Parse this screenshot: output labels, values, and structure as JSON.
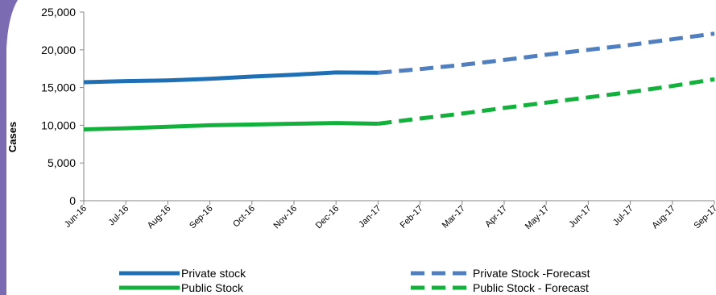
{
  "chart_data": {
    "type": "line",
    "ylabel": "Cases",
    "ylim": [
      0,
      25000
    ],
    "yticks": [
      "0",
      "5,000",
      "10,000",
      "15,000",
      "20,000",
      "25,000"
    ],
    "categories": [
      "Jun-16",
      "Jul-16",
      "Aug-16",
      "Sep-16",
      "Oct-16",
      "Nov-16",
      "Dec-16",
      "Jan-17",
      "Feb-17",
      "Mar-17",
      "Apr-17",
      "May-17",
      "Jun-17",
      "Jul-17",
      "Aug-17",
      "Sep-17"
    ],
    "series": [
      {
        "name": "Private stock",
        "style": "solid",
        "color": "#1F6FB4",
        "values": [
          15700,
          15850,
          15950,
          16150,
          16450,
          16700,
          17000,
          16950,
          null,
          null,
          null,
          null,
          null,
          null,
          null,
          null
        ]
      },
      {
        "name": "Public Stock",
        "style": "solid",
        "color": "#12B13C",
        "values": [
          9450,
          9600,
          9800,
          10000,
          10100,
          10200,
          10300,
          10200,
          null,
          null,
          null,
          null,
          null,
          null,
          null,
          null
        ]
      },
      {
        "name": "Private Stock -Forecast",
        "style": "dashed",
        "color": "#4F7FBF",
        "values": [
          null,
          null,
          null,
          null,
          null,
          null,
          null,
          16950,
          17450,
          18000,
          18650,
          19350,
          20000,
          20650,
          21400,
          22150
        ]
      },
      {
        "name": "Public Stock - Forecast",
        "style": "dashed",
        "color": "#12B13C",
        "values": [
          null,
          null,
          null,
          null,
          null,
          null,
          null,
          10200,
          10900,
          11550,
          12300,
          13000,
          13700,
          14400,
          15200,
          16100
        ]
      }
    ],
    "legend": "bottom",
    "grid": false
  }
}
